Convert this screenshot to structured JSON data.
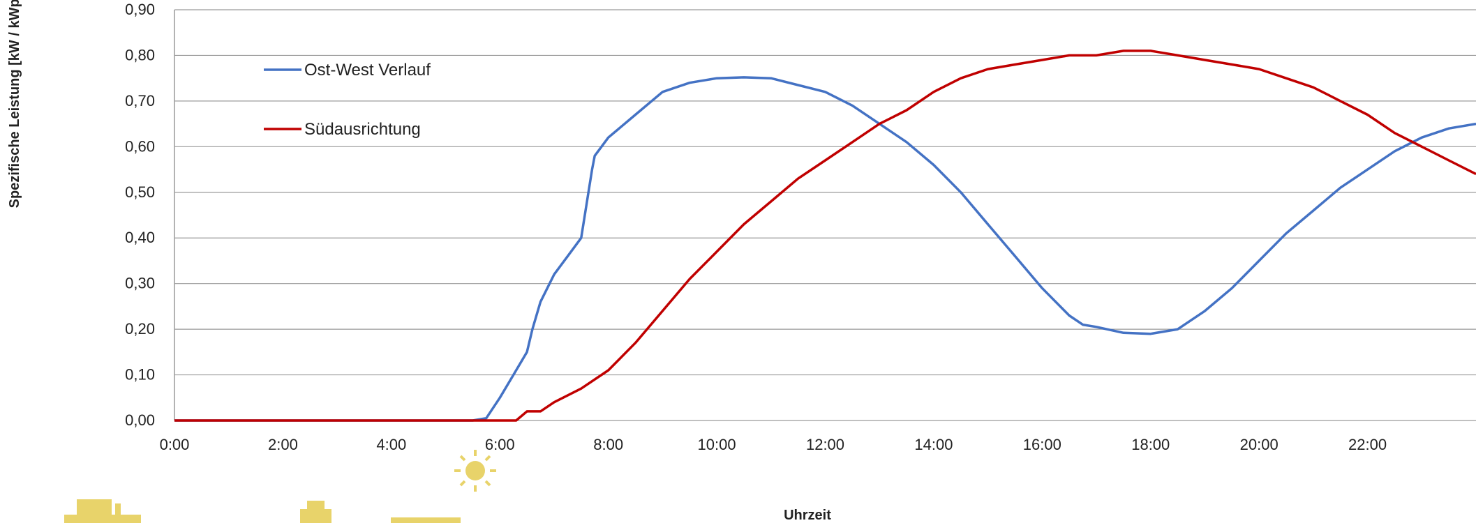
{
  "colors": {
    "ost_west": "#4472C4",
    "sued": "#C00000",
    "grid": "#9a9a9a",
    "logo": "#e8d36a"
  },
  "chart_data": {
    "type": "line",
    "xlabel": "Uhrzeit",
    "ylabel": "Spezifische Leistung [kW / kWp]",
    "xlim": [
      0,
      24
    ],
    "ylim": [
      0,
      0.9
    ],
    "x_ticks": [
      "0:00",
      "2:00",
      "4:00",
      "6:00",
      "8:00",
      "10:00",
      "12:00",
      "14:00",
      "16:00",
      "18:00",
      "20:00",
      "22:00"
    ],
    "y_ticks": [
      "0,00",
      "0,10",
      "0,20",
      "0,30",
      "0,40",
      "0,50",
      "0,60",
      "0,70",
      "0,80",
      "0,90"
    ],
    "grid": true,
    "legend_position": "top-left",
    "series": [
      {
        "name": "Ost-West Verlauf",
        "color": "#4472C4",
        "points": [
          [
            0,
            0
          ],
          [
            5.5,
            0
          ],
          [
            5.75,
            0.005
          ],
          [
            6.0,
            0.05
          ],
          [
            6.25,
            0.1
          ],
          [
            6.5,
            0.15
          ],
          [
            6.6,
            0.2
          ],
          [
            6.75,
            0.26
          ],
          [
            7.0,
            0.32
          ],
          [
            7.25,
            0.36
          ],
          [
            7.5,
            0.4
          ],
          [
            7.7,
            0.55
          ],
          [
            7.75,
            0.58
          ],
          [
            8.0,
            0.62
          ],
          [
            8.5,
            0.67
          ],
          [
            9.0,
            0.72
          ],
          [
            9.5,
            0.74
          ],
          [
            10.0,
            0.75
          ],
          [
            10.5,
            0.752
          ],
          [
            11.0,
            0.75
          ],
          [
            11.5,
            0.735
          ],
          [
            12.0,
            0.72
          ],
          [
            12.5,
            0.69
          ],
          [
            13.0,
            0.65
          ],
          [
            13.5,
            0.61
          ],
          [
            14.0,
            0.56
          ],
          [
            14.5,
            0.5
          ],
          [
            15.0,
            0.43
          ],
          [
            15.5,
            0.36
          ],
          [
            16.0,
            0.29
          ],
          [
            16.5,
            0.23
          ],
          [
            16.75,
            0.21
          ],
          [
            17.0,
            0.205
          ],
          [
            17.5,
            0.192
          ],
          [
            18.0,
            0.19
          ],
          [
            18.5,
            0.2
          ],
          [
            19.0,
            0.24
          ],
          [
            19.5,
            0.29
          ],
          [
            20.0,
            0.35
          ],
          [
            20.5,
            0.41
          ],
          [
            21.0,
            0.46
          ],
          [
            21.5,
            0.51
          ],
          [
            22.0,
            0.55
          ],
          [
            22.5,
            0.59
          ],
          [
            23.0,
            0.62
          ],
          [
            23.5,
            0.64
          ],
          [
            24.0,
            0.65
          ]
        ]
      },
      {
        "name": "Südausrichtung",
        "color": "#C00000",
        "points": [
          [
            0,
            0
          ],
          [
            6.3,
            0
          ],
          [
            6.5,
            0.02
          ],
          [
            6.75,
            0.02
          ],
          [
            7.0,
            0.04
          ],
          [
            7.5,
            0.07
          ],
          [
            8.0,
            0.11
          ],
          [
            8.5,
            0.17
          ],
          [
            9.0,
            0.24
          ],
          [
            9.5,
            0.31
          ],
          [
            10.0,
            0.37
          ],
          [
            10.5,
            0.43
          ],
          [
            11.0,
            0.48
          ],
          [
            11.5,
            0.53
          ],
          [
            12.0,
            0.57
          ],
          [
            12.5,
            0.61
          ],
          [
            13.0,
            0.65
          ],
          [
            13.5,
            0.68
          ],
          [
            14.0,
            0.72
          ],
          [
            14.5,
            0.75
          ],
          [
            15.0,
            0.77
          ],
          [
            15.5,
            0.78
          ],
          [
            16.0,
            0.79
          ],
          [
            16.5,
            0.8
          ],
          [
            17.0,
            0.8
          ],
          [
            17.5,
            0.81
          ],
          [
            18.0,
            0.81
          ],
          [
            18.5,
            0.8
          ],
          [
            19.0,
            0.79
          ],
          [
            19.5,
            0.78
          ],
          [
            20.0,
            0.77
          ],
          [
            20.5,
            0.75
          ],
          [
            21.0,
            0.73
          ],
          [
            21.5,
            0.7
          ],
          [
            22.0,
            0.67
          ],
          [
            22.5,
            0.63
          ],
          [
            23.0,
            0.6
          ],
          [
            23.5,
            0.57
          ],
          [
            24.0,
            0.54
          ]
        ]
      }
    ]
  }
}
